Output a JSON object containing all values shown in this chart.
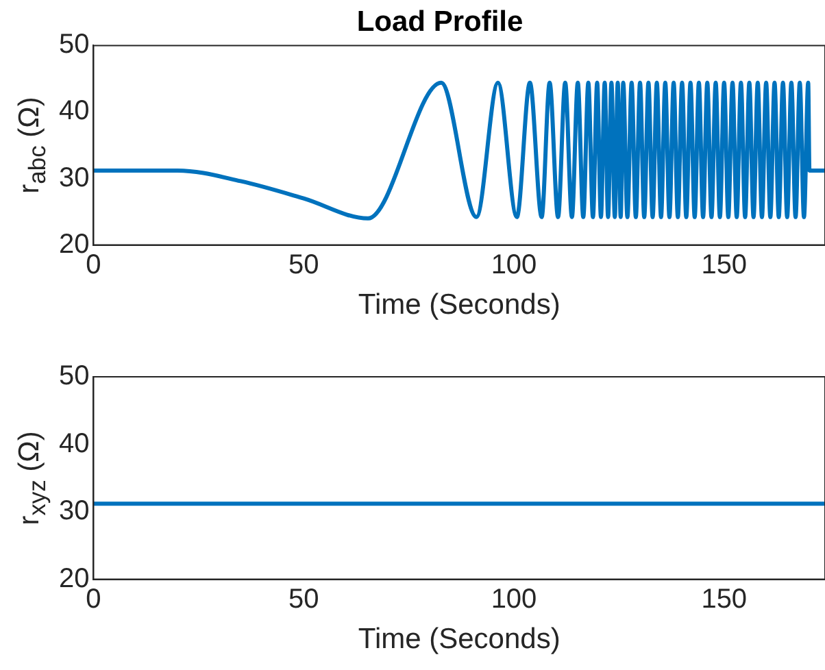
{
  "chart_data": [
    {
      "type": "line",
      "title": "Load Profile",
      "xlabel": "Time (Seconds)",
      "ylabel": "r$_{abc}$ (Ω)",
      "xlim": [
        0,
        174
      ],
      "ylim": [
        20,
        50
      ],
      "xticks": [
        0,
        50,
        100,
        150
      ],
      "yticks": [
        20,
        30,
        40,
        50
      ],
      "grid": false,
      "legend": false,
      "marker": "none",
      "line_style": "solid",
      "series": [
        {
          "color": "#0072bd",
          "x": [
            0,
            20,
            35,
            50,
            65.3,
            82.7,
            91.1,
            96.2,
            100.7,
            103.8,
            106.6,
            108.5,
            110.5,
            112.2,
            113.8,
            115.2,
            116.5,
            117.7,
            118.8,
            119.8,
            120.7,
            121.6,
            122.4,
            123.2,
            124.0,
            124.7,
            125.4,
            126,
            127,
            128,
            129,
            130,
            131,
            132,
            133,
            134,
            135,
            136,
            137,
            138,
            139,
            140,
            141,
            142,
            143,
            144,
            145,
            146,
            147,
            148,
            149,
            150,
            151,
            152,
            153,
            154,
            155,
            156,
            157,
            158,
            159,
            160,
            161,
            162,
            163,
            164,
            165,
            166,
            167,
            168,
            169,
            170,
            170.3,
            174
          ],
          "values": [
            31.2,
            31.2,
            29.6,
            27.0,
            24.0,
            44.4,
            24.2,
            44.4,
            24.2,
            44.4,
            24.2,
            44.4,
            24.2,
            44.4,
            24.2,
            44.4,
            24.2,
            44.4,
            24.2,
            44.4,
            24.2,
            44.4,
            24.2,
            44.4,
            24.2,
            44.4,
            24.2,
            44.4,
            24.2,
            44.4,
            24.2,
            44.4,
            24.2,
            44.4,
            24.2,
            44.4,
            24.2,
            44.4,
            24.2,
            44.4,
            24.2,
            44.4,
            24.2,
            44.4,
            24.2,
            44.4,
            24.2,
            44.4,
            24.2,
            44.4,
            24.2,
            44.4,
            24.2,
            44.4,
            24.2,
            44.4,
            24.2,
            44.4,
            24.2,
            44.4,
            24.2,
            44.4,
            24.2,
            44.4,
            24.2,
            44.4,
            24.2,
            44.4,
            24.2,
            44.4,
            24.2,
            44.4,
            31.2,
            31.2
          ]
        }
      ]
    },
    {
      "type": "line",
      "xlabel": "Time (Seconds)",
      "ylabel": "r$_{xyz}$ (Ω)",
      "xlim": [
        0,
        174
      ],
      "ylim": [
        20,
        50
      ],
      "xticks": [
        0,
        50,
        100,
        150
      ],
      "yticks": [
        20,
        30,
        40,
        50
      ],
      "grid": false,
      "legend": false,
      "marker": "none",
      "line_style": "solid",
      "series": [
        {
          "color": "#0072bd",
          "x": [
            0,
            174
          ],
          "values": [
            31.2,
            31.2
          ]
        }
      ]
    }
  ]
}
